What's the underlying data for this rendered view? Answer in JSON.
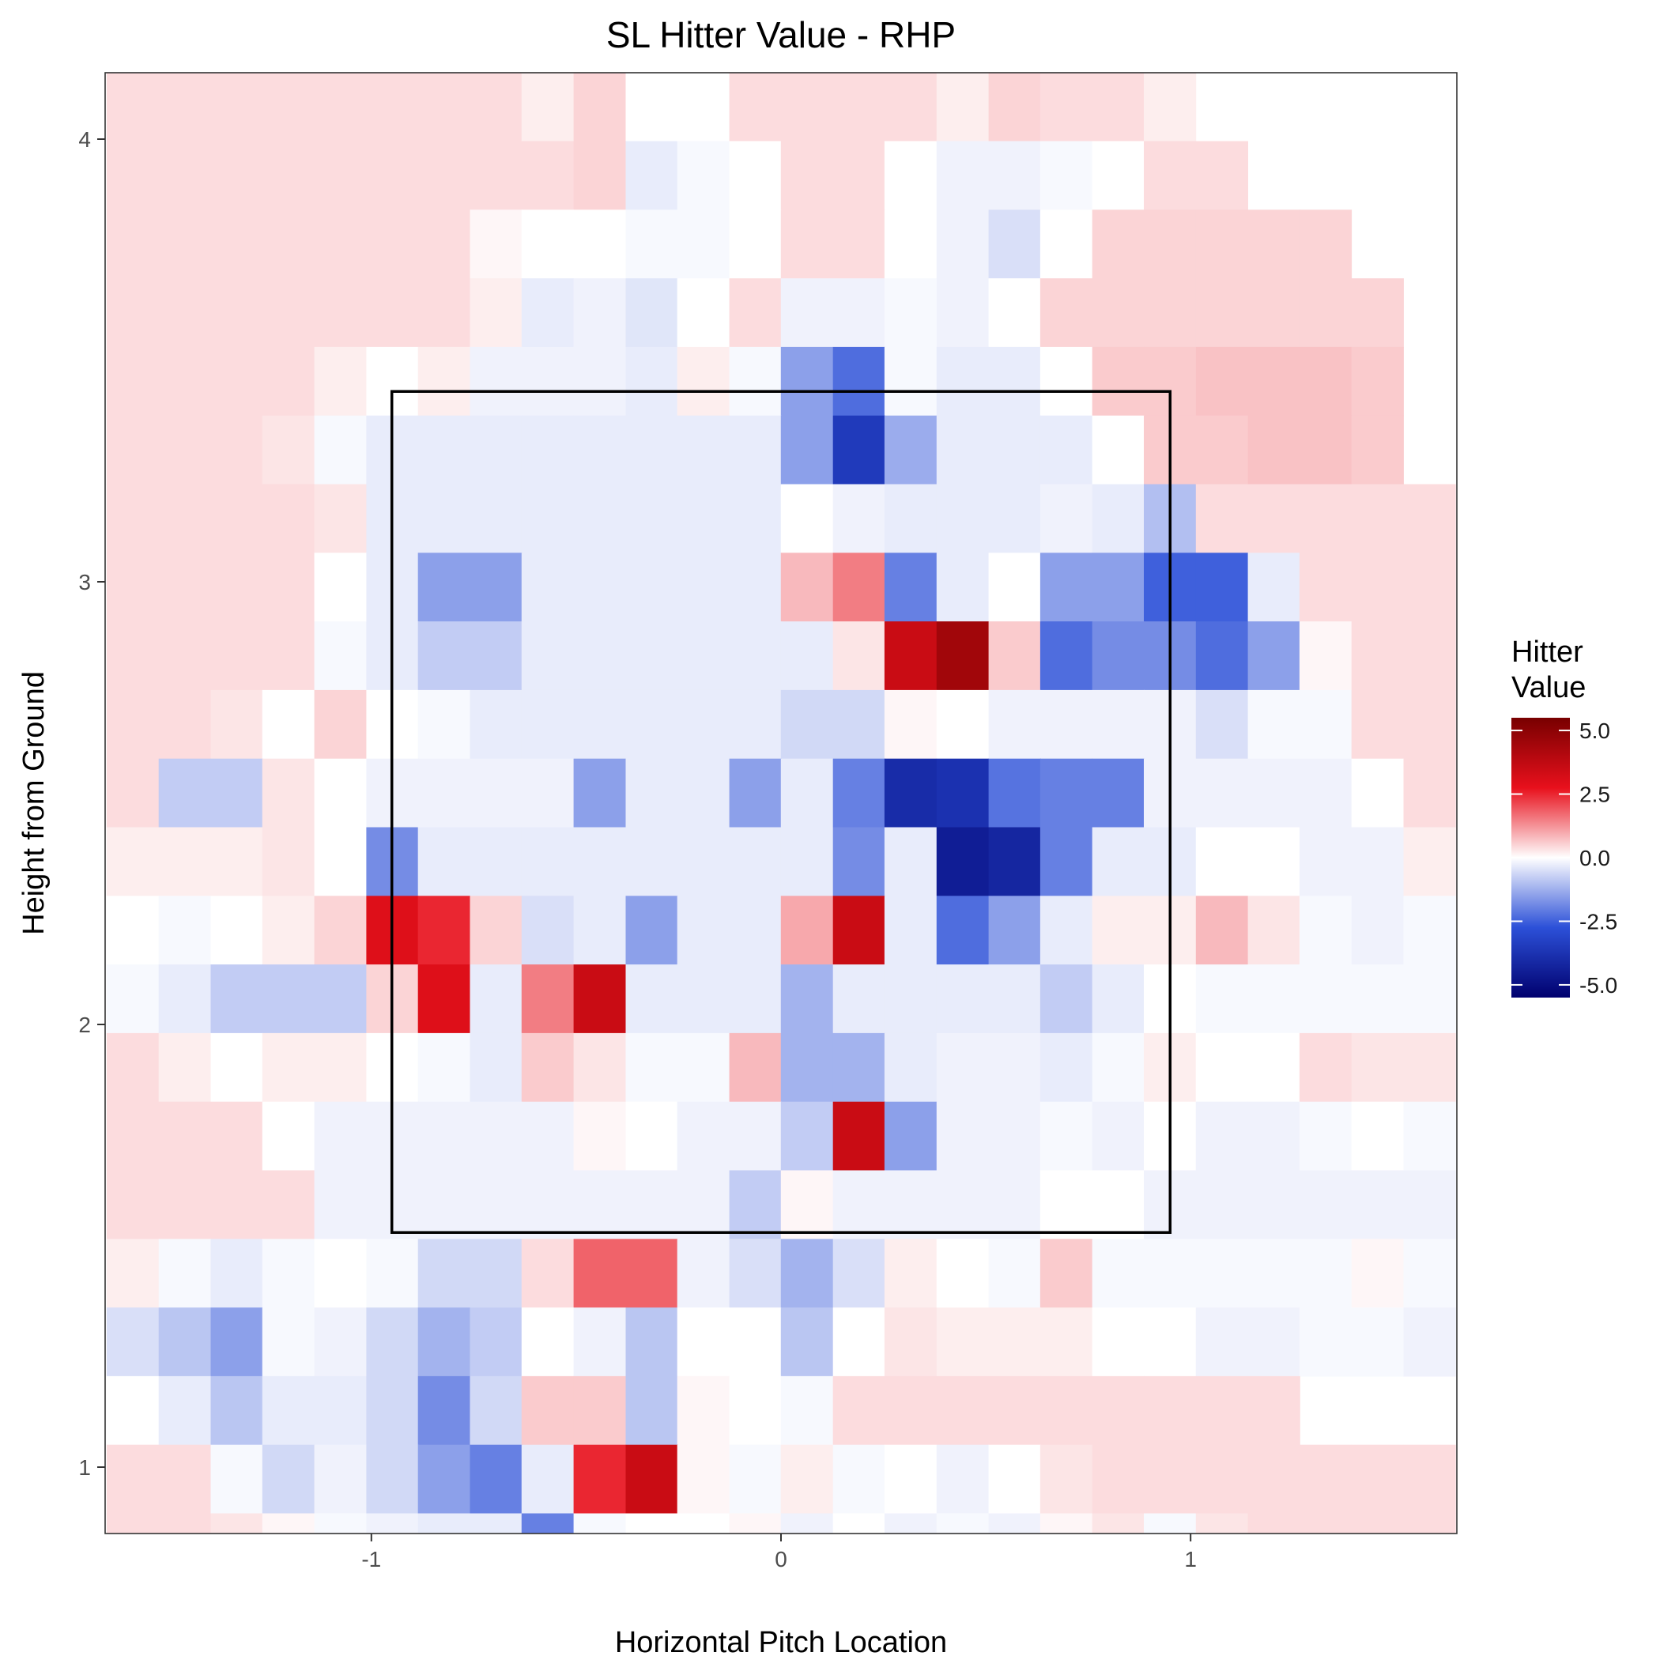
{
  "chart_data": {
    "type": "heatmap",
    "title": "SL Hitter Value - RHP",
    "xlabel": "Horizontal Pitch Location",
    "ylabel": "Height from Ground",
    "xlim": [
      -1.65,
      1.65
    ],
    "ylim": [
      0.85,
      4.15
    ],
    "x_ticks": [
      -1,
      0,
      1
    ],
    "y_ticks": [
      1,
      2,
      3,
      4
    ],
    "x_tick_labels": [
      "-1",
      "0",
      "1"
    ],
    "y_tick_labels": [
      "1",
      "2",
      "3",
      "4"
    ],
    "grid": false,
    "legend": {
      "title_lines": [
        "Hitter",
        "Value"
      ],
      "position": "right",
      "range": [
        -5.5,
        5.5
      ],
      "breaks": [
        5.0,
        2.5,
        0.0,
        -2.5,
        -5.0
      ],
      "labels": [
        "5.0",
        "2.5",
        "0.0",
        "-2.5",
        "-5.0"
      ],
      "colors": {
        "low": "#00006e",
        "mid_low": "#2c50d8",
        "mid": "#ffffff",
        "mid_high": "#e8101c",
        "high": "#780000"
      }
    },
    "strike_zone": {
      "x": [
        -0.95,
        0.95
      ],
      "y": [
        1.53,
        3.43
      ]
    },
    "tile_size": {
      "x": 0.1266,
      "y": 0.155
    },
    "x": [
      -1.583,
      -1.456,
      -1.329,
      -1.203,
      -1.076,
      -0.949,
      -0.823,
      -0.696,
      -0.57,
      -0.443,
      -0.316,
      -0.19,
      -0.063,
      0.063,
      0.19,
      0.316,
      0.443,
      0.57,
      0.696,
      0.823,
      0.949,
      1.076,
      1.203,
      1.329,
      1.456,
      1.583
    ],
    "y": [
      4.073,
      3.918,
      3.763,
      3.608,
      3.453,
      3.298,
      3.143,
      2.988,
      2.833,
      2.678,
      2.523,
      2.368,
      2.213,
      2.058,
      1.903,
      1.748,
      1.593,
      1.438,
      1.283,
      1.128,
      0.973,
      0.818
    ],
    "z": [
      [
        0.4,
        0.4,
        0.4,
        0.4,
        0.4,
        0.4,
        0.4,
        0.4,
        0.2,
        0.5,
        0.0,
        0.0,
        0.4,
        0.4,
        0.4,
        0.4,
        0.2,
        0.5,
        0.4,
        0.4,
        0.2,
        null,
        null,
        null,
        null,
        null
      ],
      [
        0.4,
        0.4,
        0.4,
        0.4,
        0.4,
        0.4,
        0.4,
        0.4,
        0.4,
        0.5,
        -0.3,
        -0.1,
        0.0,
        0.4,
        0.4,
        0.0,
        -0.2,
        -0.2,
        -0.1,
        0.0,
        0.4,
        0.4,
        null,
        null,
        null,
        null
      ],
      [
        0.4,
        0.4,
        0.4,
        0.4,
        0.4,
        0.4,
        0.4,
        0.1,
        0.0,
        0.0,
        -0.1,
        -0.1,
        0.0,
        0.4,
        0.4,
        0.0,
        -0.2,
        -0.5,
        0.0,
        0.5,
        0.5,
        0.5,
        0.5,
        0.5,
        null,
        null
      ],
      [
        0.4,
        0.4,
        0.4,
        0.4,
        0.4,
        0.4,
        0.4,
        0.2,
        -0.3,
        -0.2,
        -0.4,
        0.0,
        0.4,
        -0.2,
        -0.2,
        -0.1,
        -0.2,
        0.0,
        0.5,
        0.5,
        0.5,
        0.5,
        0.5,
        0.5,
        0.5,
        null
      ],
      [
        0.4,
        0.4,
        0.4,
        0.4,
        0.2,
        0.0,
        0.2,
        -0.2,
        -0.2,
        -0.2,
        -0.3,
        0.2,
        -0.1,
        -1.5,
        -2.3,
        -0.1,
        -0.3,
        -0.3,
        0.0,
        0.6,
        0.6,
        0.7,
        0.7,
        0.7,
        0.6,
        null
      ],
      [
        0.4,
        0.4,
        0.4,
        0.3,
        -0.1,
        -0.3,
        -0.3,
        -0.3,
        -0.3,
        -0.3,
        -0.3,
        -0.3,
        -0.3,
        -1.5,
        -3.5,
        -1.3,
        -0.3,
        -0.3,
        -0.3,
        0.0,
        0.6,
        0.6,
        0.7,
        0.7,
        0.6,
        null
      ],
      [
        0.4,
        0.4,
        0.4,
        0.4,
        0.3,
        -0.3,
        -0.3,
        -0.3,
        -0.3,
        -0.3,
        -0.3,
        -0.3,
        -0.3,
        0.0,
        -0.2,
        -0.3,
        -0.3,
        -0.3,
        -0.2,
        -0.3,
        -1.0,
        0.4,
        0.4,
        0.4,
        0.4,
        0.4
      ],
      [
        0.4,
        0.4,
        0.4,
        0.4,
        0.0,
        -0.3,
        -1.5,
        -1.5,
        -0.3,
        -0.3,
        -0.3,
        -0.3,
        -0.3,
        0.8,
        1.5,
        -2.0,
        -0.3,
        0.0,
        -1.5,
        -1.5,
        -2.5,
        -2.5,
        -0.3,
        0.4,
        0.4,
        0.4
      ],
      [
        0.4,
        0.4,
        0.4,
        0.4,
        -0.1,
        -0.3,
        -0.8,
        -0.8,
        -0.3,
        -0.3,
        -0.3,
        -0.3,
        -0.3,
        -0.3,
        0.3,
        3.5,
        4.5,
        0.6,
        -2.3,
        -1.8,
        -1.8,
        -2.3,
        -1.5,
        0.1,
        0.4,
        0.4
      ],
      [
        0.4,
        0.4,
        0.3,
        0.0,
        0.5,
        0.0,
        -0.1,
        -0.3,
        -0.3,
        -0.3,
        -0.3,
        -0.3,
        -0.3,
        -0.6,
        -0.6,
        0.1,
        0.0,
        -0.2,
        -0.2,
        -0.2,
        -0.2,
        -0.5,
        -0.1,
        -0.1,
        0.4,
        0.4
      ],
      [
        0.4,
        -0.8,
        -0.8,
        0.3,
        0.0,
        -0.2,
        -0.2,
        -0.2,
        -0.2,
        -1.5,
        -0.3,
        -0.3,
        -1.5,
        -0.3,
        -2.0,
        -4.0,
        -3.8,
        -2.2,
        -2.0,
        -2.0,
        -0.2,
        -0.2,
        -0.2,
        -0.2,
        0.0,
        0.4
      ],
      [
        0.2,
        0.2,
        0.2,
        0.3,
        0.0,
        -1.8,
        -0.3,
        -0.3,
        -0.3,
        -0.3,
        -0.3,
        -0.3,
        -0.3,
        -0.3,
        -1.8,
        -0.3,
        -4.5,
        -4.2,
        -2.0,
        -0.3,
        -0.3,
        0.0,
        0.0,
        -0.2,
        -0.2,
        0.2
      ],
      [
        0.0,
        -0.1,
        0.0,
        0.2,
        0.5,
        3.0,
        2.5,
        0.5,
        -0.5,
        -0.3,
        -1.5,
        -0.3,
        -0.3,
        1.0,
        3.5,
        -0.3,
        -2.3,
        -1.5,
        -0.3,
        0.2,
        0.2,
        0.8,
        0.3,
        -0.1,
        -0.2,
        -0.1
      ],
      [
        -0.1,
        -0.3,
        -0.8,
        -0.8,
        -0.8,
        0.5,
        3.0,
        -0.3,
        1.5,
        3.5,
        -0.3,
        -0.3,
        -0.3,
        -1.2,
        -0.3,
        -0.3,
        -0.3,
        -0.3,
        -0.8,
        -0.3,
        0.0,
        -0.1,
        -0.1,
        -0.1,
        -0.1,
        -0.1
      ],
      [
        0.4,
        0.2,
        0.0,
        0.2,
        0.2,
        0.0,
        -0.1,
        -0.3,
        0.6,
        0.3,
        -0.1,
        -0.1,
        0.8,
        -1.2,
        -1.2,
        -0.3,
        -0.2,
        -0.2,
        -0.3,
        -0.1,
        0.2,
        0.0,
        0.0,
        0.4,
        0.3,
        0.3
      ],
      [
        0.4,
        0.4,
        0.4,
        0.0,
        -0.2,
        -0.2,
        -0.2,
        -0.2,
        -0.2,
        0.1,
        0.0,
        -0.2,
        -0.2,
        -0.8,
        3.5,
        -1.5,
        -0.2,
        -0.2,
        -0.1,
        -0.2,
        0.0,
        -0.2,
        -0.2,
        -0.1,
        0.0,
        -0.1
      ],
      [
        0.4,
        0.4,
        0.4,
        0.4,
        -0.2,
        -0.2,
        -0.2,
        -0.2,
        -0.2,
        -0.2,
        -0.2,
        -0.2,
        -0.8,
        0.1,
        -0.2,
        -0.2,
        -0.2,
        -0.2,
        0.0,
        0.0,
        -0.2,
        -0.2,
        -0.2,
        -0.2,
        -0.2,
        -0.2
      ],
      [
        0.2,
        -0.1,
        -0.3,
        -0.1,
        0.0,
        -0.1,
        -0.6,
        -0.6,
        0.4,
        1.8,
        1.8,
        -0.2,
        -0.5,
        -1.2,
        -0.5,
        0.2,
        0.0,
        -0.1,
        0.6,
        -0.1,
        -0.1,
        -0.1,
        -0.1,
        -0.1,
        0.1,
        -0.1
      ],
      [
        -0.5,
        -0.9,
        -1.5,
        -0.1,
        -0.2,
        -0.6,
        -1.2,
        -0.8,
        0.0,
        -0.2,
        -0.9,
        0.0,
        0.0,
        -0.9,
        0.0,
        0.3,
        0.2,
        0.2,
        0.2,
        0.0,
        0.0,
        -0.2,
        -0.2,
        -0.1,
        -0.1,
        -0.2
      ],
      [
        0.0,
        -0.3,
        -0.9,
        -0.3,
        -0.3,
        -0.6,
        -1.8,
        -0.6,
        0.6,
        0.6,
        -0.9,
        0.1,
        0.0,
        -0.1,
        0.4,
        0.4,
        0.4,
        0.4,
        0.4,
        0.4,
        0.4,
        0.4,
        0.4,
        null,
        null,
        null
      ],
      [
        0.4,
        0.4,
        -0.1,
        -0.6,
        -0.2,
        -0.6,
        -1.5,
        -2.0,
        -0.3,
        2.5,
        3.5,
        0.1,
        -0.1,
        0.2,
        -0.1,
        0.0,
        -0.2,
        0.0,
        0.3,
        0.4,
        0.4,
        0.4,
        0.4,
        0.4,
        0.4,
        0.4
      ],
      [
        0.4,
        0.4,
        0.3,
        0.1,
        -0.1,
        -0.2,
        -0.3,
        -0.3,
        -2.0,
        -0.1,
        0.0,
        0.0,
        0.1,
        -0.2,
        0.0,
        -0.2,
        -0.1,
        -0.2,
        0.1,
        0.3,
        -0.1,
        0.3,
        0.4,
        0.4,
        0.4,
        0.4
      ]
    ]
  }
}
